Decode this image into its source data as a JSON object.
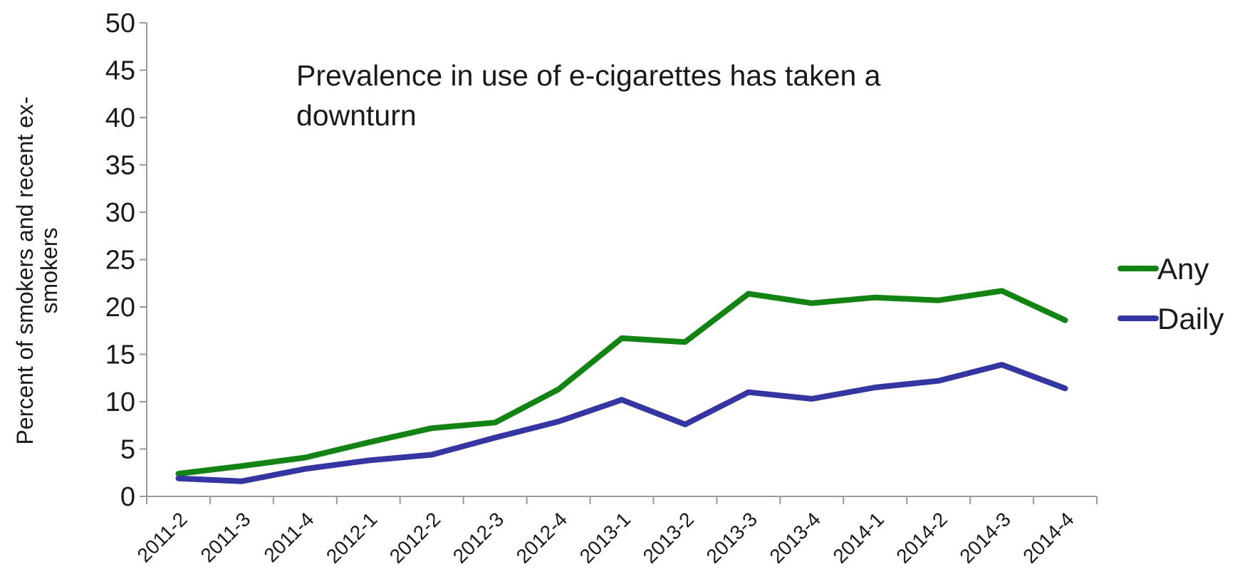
{
  "chart_data": {
    "type": "line",
    "title": "",
    "annotation_lines": [
      "Prevalence in use of e-cigarettes has taken a",
      "downturn"
    ],
    "xlabel": "",
    "ylabel_lines": [
      "Percent of smokers and recent ex-",
      "smokers"
    ],
    "categories": [
      "2011-2",
      "2011-3",
      "2011-4",
      "2012-1",
      "2012-2",
      "2012-3",
      "2012-4",
      "2013-1",
      "2013-2",
      "2013-3",
      "2013-4",
      "2014-1",
      "2014-2",
      "2014-3",
      "2014-4"
    ],
    "ylim": [
      0,
      50
    ],
    "yticks": [
      0,
      5,
      10,
      15,
      20,
      25,
      30,
      35,
      40,
      45,
      50
    ],
    "grid": false,
    "legend_position": "right",
    "series": [
      {
        "name": "Any",
        "color": "#138413",
        "values": [
          2.4,
          3.2,
          4.1,
          5.7,
          7.2,
          7.8,
          11.3,
          16.7,
          16.3,
          21.4,
          20.4,
          21.0,
          20.7,
          21.7,
          18.6
        ]
      },
      {
        "name": "Daily",
        "color": "#3636a2",
        "values": [
          1.9,
          1.6,
          2.9,
          3.8,
          4.4,
          6.2,
          7.9,
          10.2,
          7.6,
          11.0,
          10.3,
          11.5,
          12.2,
          13.9,
          11.4
        ]
      }
    ]
  }
}
